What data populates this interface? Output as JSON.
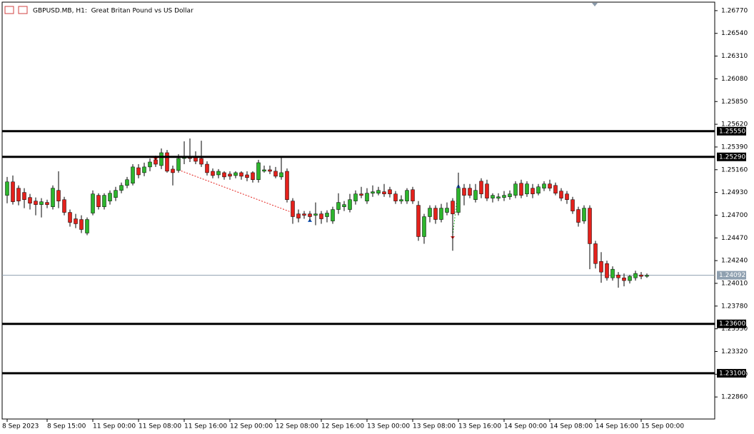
{
  "chart_data": {
    "type": "candlestick",
    "title": "GBPUSD.MB, H1:  Great Britan Pound vs US Dollar",
    "categories": [
      "8 Sep 2023",
      null,
      null,
      null,
      null,
      null,
      null,
      "8 Sep 15:00",
      null,
      null,
      null,
      null,
      null,
      null,
      null,
      "11 Sep 00:00",
      null,
      null,
      null,
      null,
      null,
      null,
      null,
      "11 Sep 08:00",
      null,
      null,
      null,
      null,
      null,
      null,
      null,
      "11 Sep 16:00",
      null,
      null,
      null,
      null,
      null,
      null,
      null,
      "12 Sep 00:00",
      null,
      null,
      null,
      null,
      null,
      null,
      null,
      "12 Sep 08:00",
      null,
      null,
      null,
      null,
      null,
      null,
      null,
      "12 Sep 16:00",
      null,
      null,
      null,
      null,
      null,
      null,
      null,
      "13 Sep 00:00",
      null,
      null,
      null,
      null,
      null,
      null,
      null,
      "13 Sep 08:00",
      null,
      null,
      null,
      null,
      null,
      null,
      null,
      "13 Sep 16:00",
      null,
      null,
      null,
      null,
      null,
      null,
      null,
      "14 Sep 00:00",
      null,
      null,
      null,
      null,
      null,
      null,
      null,
      "14 Sep 08:00",
      null,
      null,
      null,
      null,
      null,
      null,
      null,
      "14 Sep 16:00",
      null,
      null,
      null,
      null,
      null,
      null,
      null,
      "15 Sep 00:00",
      null
    ],
    "open": [
      1.24901,
      1.25037,
      1.24973,
      1.2493,
      1.24879,
      1.24843,
      1.24807,
      1.24829,
      1.24785,
      1.24951,
      1.24857,
      1.24728,
      1.24663,
      1.24656,
      1.24519,
      1.24721,
      1.24901,
      1.24785,
      1.24843,
      1.24879,
      1.24951,
      1.25001,
      1.25023,
      1.2518,
      1.2513,
      1.25188,
      1.2526,
      1.25202,
      1.25332,
      1.25166,
      1.25152,
      1.25274,
      1.25289,
      1.25289,
      1.25274,
      1.25216,
      1.25144,
      1.25108,
      1.2513,
      1.25116,
      1.25101,
      1.2513,
      1.25108,
      1.2513,
      1.25059,
      1.25145,
      1.25159,
      1.25145,
      1.25087,
      1.25144,
      1.24843,
      1.24713,
      1.24713,
      1.24713,
      1.24699,
      1.24713,
      1.24685,
      1.24641,
      1.24757,
      1.24785,
      1.24757,
      1.24843,
      1.24915,
      1.24843,
      1.24922,
      1.24922,
      1.24937,
      1.24958,
      1.24915,
      1.24843,
      1.24843,
      1.24958,
      1.248,
      1.24483,
      1.24685,
      1.24771,
      1.24656,
      1.24728,
      1.24843,
      1.24728,
      1.24973,
      1.24973,
      1.24857,
      1.25044,
      1.25016,
      1.24872,
      1.24872,
      1.24879,
      1.24886,
      1.24901,
      1.25023,
      1.24915,
      1.24973,
      1.24922,
      1.24973,
      1.25016,
      1.25001,
      1.24944,
      1.24915,
      1.24857,
      1.24757,
      1.24641,
      1.24771,
      1.24411,
      1.24232,
      1.2421,
      1.24066,
      1.24095,
      1.24066,
      1.24038,
      1.24066,
      1.24095,
      1.24081
    ],
    "high": [
      1.25087,
      1.25101,
      1.25001,
      1.24973,
      1.24915,
      1.24879,
      1.24872,
      1.24857,
      1.25001,
      1.25144,
      1.24886,
      1.24757,
      1.24713,
      1.24699,
      1.24677,
      1.24951,
      1.24922,
      1.24922,
      1.24951,
      1.24987,
      1.2503,
      1.25087,
      1.25216,
      1.25216,
      1.25231,
      1.25274,
      1.25303,
      1.25375,
      1.2536,
      1.25202,
      1.25317,
      1.25447,
      1.25476,
      1.25346,
      1.25454,
      1.25245,
      1.25173,
      1.25166,
      1.25145,
      1.25144,
      1.25145,
      1.25145,
      1.25144,
      1.25145,
      1.2526,
      1.25202,
      1.25202,
      1.25188,
      1.25289,
      1.25173,
      1.24872,
      1.24757,
      1.24742,
      1.24742,
      1.24829,
      1.24742,
      1.24749,
      1.24785,
      1.24922,
      1.24843,
      1.24915,
      1.24951,
      1.24987,
      1.24973,
      1.25001,
      1.24987,
      1.25016,
      1.24987,
      1.24944,
      1.24901,
      1.24973,
      1.24987,
      1.24843,
      1.24713,
      1.248,
      1.248,
      1.24814,
      1.24829,
      1.24872,
      1.2513,
      1.25016,
      1.25016,
      1.25016,
      1.25073,
      1.25059,
      1.24922,
      1.24922,
      1.24944,
      1.24951,
      1.25044,
      1.25059,
      1.25044,
      1.25016,
      1.25016,
      1.25044,
      1.25059,
      1.2503,
      1.24973,
      1.24944,
      1.24886,
      1.24785,
      1.248,
      1.248,
      1.2444,
      1.24326,
      1.24239,
      1.24182,
      1.24124,
      1.2411,
      1.24095,
      1.24138,
      1.24124,
      1.2411
    ],
    "low": [
      1.24821,
      1.24807,
      1.248,
      1.24771,
      1.24757,
      1.24699,
      1.24677,
      1.24771,
      1.24757,
      1.24771,
      1.24699,
      1.24584,
      1.24569,
      1.24519,
      1.24497,
      1.24699,
      1.24757,
      1.24757,
      1.24807,
      1.24843,
      1.24922,
      1.24973,
      1.25001,
      1.25073,
      1.25094,
      1.25145,
      1.25188,
      1.25166,
      1.2513,
      1.25001,
      1.2513,
      1.25216,
      1.25238,
      1.25216,
      1.25188,
      1.25101,
      1.25073,
      1.25073,
      1.25059,
      1.25059,
      1.25073,
      1.25059,
      1.25044,
      1.2503,
      1.2503,
      1.2513,
      1.25116,
      1.25073,
      1.25059,
      1.24829,
      1.24613,
      1.24627,
      1.24663,
      1.24641,
      1.24598,
      1.24613,
      1.24627,
      1.24613,
      1.24713,
      1.24742,
      1.24728,
      1.24807,
      1.24872,
      1.24814,
      1.24886,
      1.24901,
      1.24886,
      1.24879,
      1.24814,
      1.24814,
      1.24814,
      1.24814,
      1.2444,
      1.24411,
      1.24627,
      1.24613,
      1.24627,
      1.24699,
      1.2434,
      1.24699,
      1.248,
      1.24872,
      1.24829,
      1.24872,
      1.24843,
      1.24829,
      1.24843,
      1.24843,
      1.24857,
      1.24872,
      1.24872,
      1.24886,
      1.24872,
      1.24901,
      1.24944,
      1.24944,
      1.24901,
      1.24843,
      1.24814,
      1.24713,
      1.24584,
      1.24613,
      1.24153,
      1.2416,
      1.24016,
      1.24038,
      1.24038,
      1.23966,
      1.2398,
      1.24009,
      1.24038,
      1.24052,
      1.24066
    ],
    "close": [
      1.25037,
      1.24836,
      1.24843,
      1.24857,
      1.24821,
      1.24807,
      1.24836,
      1.24807,
      1.24973,
      1.24843,
      1.24728,
      1.24627,
      1.24613,
      1.24555,
      1.24656,
      1.24915,
      1.24785,
      1.24901,
      1.24922,
      1.24951,
      1.25001,
      1.25059,
      1.25188,
      1.25108,
      1.25188,
      1.25238,
      1.25216,
      1.25332,
      1.25145,
      1.2513,
      1.25274,
      1.25296,
      1.25274,
      1.25245,
      1.25216,
      1.2513,
      1.25101,
      1.25144,
      1.25087,
      1.25094,
      1.2513,
      1.25094,
      1.2508,
      1.25059,
      1.25231,
      1.25159,
      1.25144,
      1.25094,
      1.2513,
      1.24857,
      1.24685,
      1.2467,
      1.24699,
      1.24685,
      1.24713,
      1.24663,
      1.24721,
      1.24757,
      1.24829,
      1.24807,
      1.24857,
      1.24915,
      1.24901,
      1.24922,
      1.24937,
      1.24951,
      1.24915,
      1.24915,
      1.24843,
      1.24857,
      1.24951,
      1.24843,
      1.24483,
      1.24685,
      1.24771,
      1.24656,
      1.24771,
      1.24771,
      1.24713,
      1.24973,
      1.24901,
      1.24901,
      1.24951,
      1.24915,
      1.24872,
      1.24901,
      1.24886,
      1.24901,
      1.24915,
      1.25016,
      1.24901,
      1.25016,
      1.24915,
      1.24987,
      1.25016,
      1.24973,
      1.24922,
      1.24872,
      1.24857,
      1.24742,
      1.24627,
      1.24771,
      1.24411,
      1.2421,
      1.24124,
      1.24066,
      1.24153,
      1.24066,
      1.24038,
      1.24081,
      1.2411,
      1.24081,
      1.24092
    ],
    "up_color": "#2db52d",
    "down_color": "#e4211c",
    "ylim": [
      1.22637,
      1.26856
    ],
    "yticks": [
      {
        "value": 1.2677,
        "label": "1.26770"
      },
      {
        "value": 1.2654,
        "label": "1.26540"
      },
      {
        "value": 1.2631,
        "label": "1.26310"
      },
      {
        "value": 1.2608,
        "label": "1.26080"
      },
      {
        "value": 1.2585,
        "label": "1.25850"
      },
      {
        "value": 1.2562,
        "label": "1.25620"
      },
      {
        "value": 1.2539,
        "label": "1.25390"
      },
      {
        "value": 1.2516,
        "label": "1.25160"
      },
      {
        "value": 1.2493,
        "label": "1.24930"
      },
      {
        "value": 1.247,
        "label": "1.24700"
      },
      {
        "value": 1.2447,
        "label": "1.24470"
      },
      {
        "value": 1.2424,
        "label": "1.24240"
      },
      {
        "value": 1.2401,
        "label": "1.24010"
      },
      {
        "value": 1.2378,
        "label": "1.23780"
      },
      {
        "value": 1.2355,
        "label": "1.23550"
      },
      {
        "value": 1.2332,
        "label": "1.23320"
      },
      {
        "value": 1.2309,
        "label": "1.23090"
      },
      {
        "value": 1.2286,
        "label": "1.22860"
      }
    ],
    "levels": [
      {
        "value": 1.2555,
        "label": "1.25550"
      },
      {
        "value": 1.2529,
        "label": "1.25290"
      },
      {
        "value": 1.236,
        "label": "1.23600"
      },
      {
        "value": 1.231,
        "label": "1.23100"
      }
    ],
    "level_color": "#000000",
    "last_price": 1.24092,
    "last_price_color": "#8fa0b0"
  }
}
